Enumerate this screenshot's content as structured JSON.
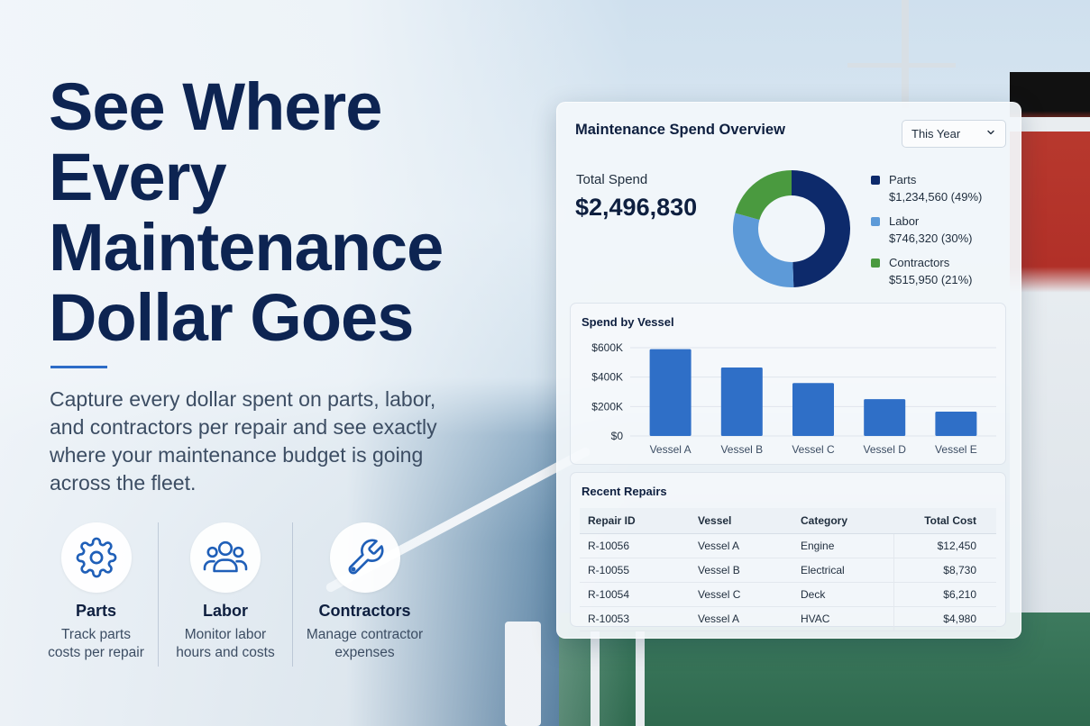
{
  "hero": {
    "title_line1": "See Where",
    "title_line2": "Every",
    "title_line3": "Maintenance",
    "title_line4": "Dollar Goes",
    "description": "Capture every dollar spent on parts, labor, and contractors per repair and see exactly where your maintenance budget is going across the fleet."
  },
  "features": [
    {
      "icon": "gear-icon",
      "title": "Parts",
      "subtitle_line1": "Track parts",
      "subtitle_line2": "costs per repair"
    },
    {
      "icon": "users-icon",
      "title": "Labor",
      "subtitle_line1": "Monitor labor",
      "subtitle_line2": "hours and costs"
    },
    {
      "icon": "wrench-icon",
      "title": "Contractors",
      "subtitle_line1": "Manage contractor",
      "subtitle_line2": "expenses"
    }
  ],
  "dashboard": {
    "title": "Maintenance Spend Overview",
    "period_select": "This Year",
    "total_label": "Total Spend",
    "total_value": "$2,496,830",
    "breakdown": [
      {
        "name": "Parts",
        "value": "$1,234,560 (49%)",
        "share": 49,
        "color": "#0d2a6b"
      },
      {
        "name": "Labor",
        "value": "$746,320 (30%)",
        "share": 30,
        "color": "#5d9ad8"
      },
      {
        "name": "Contractors",
        "value": "$515,950 (21%)",
        "share": 21,
        "color": "#4a9a3f"
      }
    ],
    "repairs": {
      "title": "Recent Repairs",
      "columns": [
        "Repair ID",
        "Vessel",
        "Category",
        "Total Cost"
      ],
      "rows": [
        [
          "R-10056",
          "Vessel A",
          "Engine",
          "$12,450"
        ],
        [
          "R-10055",
          "Vessel B",
          "Electrical",
          "$8,730"
        ],
        [
          "R-10054",
          "Vessel C",
          "Deck",
          "$6,210"
        ],
        [
          "R-10053",
          "Vessel A",
          "HVAC",
          "$4,980"
        ]
      ]
    }
  },
  "chart_data": [
    {
      "type": "pie",
      "categories": [
        "Parts",
        "Labor",
        "Contractors"
      ],
      "values": [
        1234560,
        746320,
        515950
      ],
      "colors": [
        "#0d2a6b",
        "#5d9ad8",
        "#4a9a3f"
      ]
    },
    {
      "type": "bar",
      "title": "Spend by Vessel",
      "categories": [
        "Vessel A",
        "Vessel B",
        "Vessel C",
        "Vessel D",
        "Vessel E"
      ],
      "values": [
        590000,
        465000,
        360000,
        250000,
        165000
      ],
      "ylim": [
        0,
        600000
      ],
      "yticks": [
        "$0",
        "$200K",
        "$400K",
        "$600K"
      ],
      "grid": true,
      "color": "#2f6fc7"
    }
  ]
}
